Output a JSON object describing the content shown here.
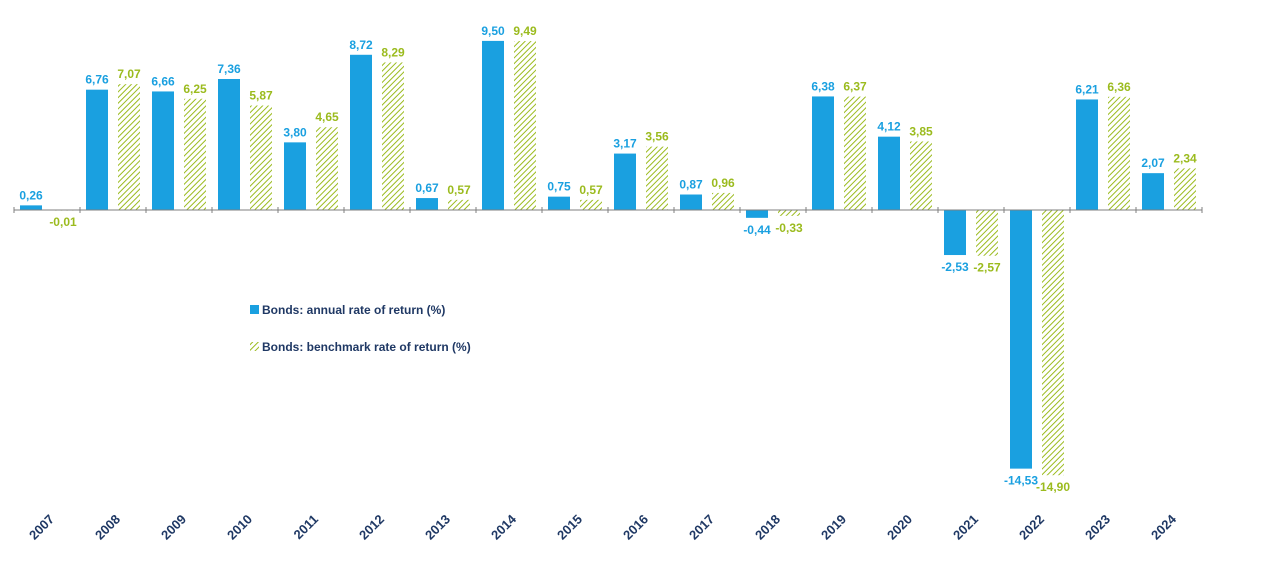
{
  "chart_data": {
    "type": "bar",
    "categories": [
      "2007",
      "2008",
      "2009",
      "2010",
      "2011",
      "2012",
      "2013",
      "2014",
      "2015",
      "2016",
      "2017",
      "2018",
      "2019",
      "2020",
      "2021",
      "2022",
      "2023",
      "2024"
    ],
    "series": [
      {
        "name": "Bonds: annual rate of return (%)",
        "color": "#1aa0e0",
        "pattern": "solid",
        "values": [
          0.26,
          6.76,
          6.66,
          7.36,
          3.8,
          8.72,
          0.67,
          9.5,
          0.75,
          3.17,
          0.87,
          -0.44,
          6.38,
          4.12,
          -2.53,
          -14.53,
          6.21,
          2.07
        ],
        "labels": [
          "0,26",
          "6,76",
          "6,66",
          "7,36",
          "3,80",
          "8,72",
          "0,67",
          "9,50",
          "0,75",
          "3,17",
          "0,87",
          "-0,44",
          "6,38",
          "4,12",
          "-2,53",
          "-14,53",
          "6,21",
          "2,07"
        ]
      },
      {
        "name": "Bonds: benchmark rate of return (%)",
        "color": "#9bbb1e",
        "pattern": "hatched",
        "values": [
          -0.01,
          7.07,
          6.25,
          5.87,
          4.65,
          8.29,
          0.57,
          9.49,
          0.57,
          3.56,
          0.96,
          -0.33,
          6.37,
          3.85,
          -2.57,
          -14.9,
          6.36,
          2.34
        ],
        "labels": [
          "-0,01",
          "7,07",
          "6,25",
          "5,87",
          "4,65",
          "8,29",
          "0,57",
          "9,49",
          "0,57",
          "3,56",
          "0,96",
          "-0,33",
          "6,37",
          "3,85",
          "-2,57",
          "-14,90",
          "6,36",
          "2,34"
        ]
      }
    ],
    "ylim": [
      -15,
      9.5
    ],
    "grid": false,
    "legend": "middle-left",
    "label_colors": {
      "primary": "#1aa0e0",
      "benchmark": "#9bbb1e"
    }
  }
}
